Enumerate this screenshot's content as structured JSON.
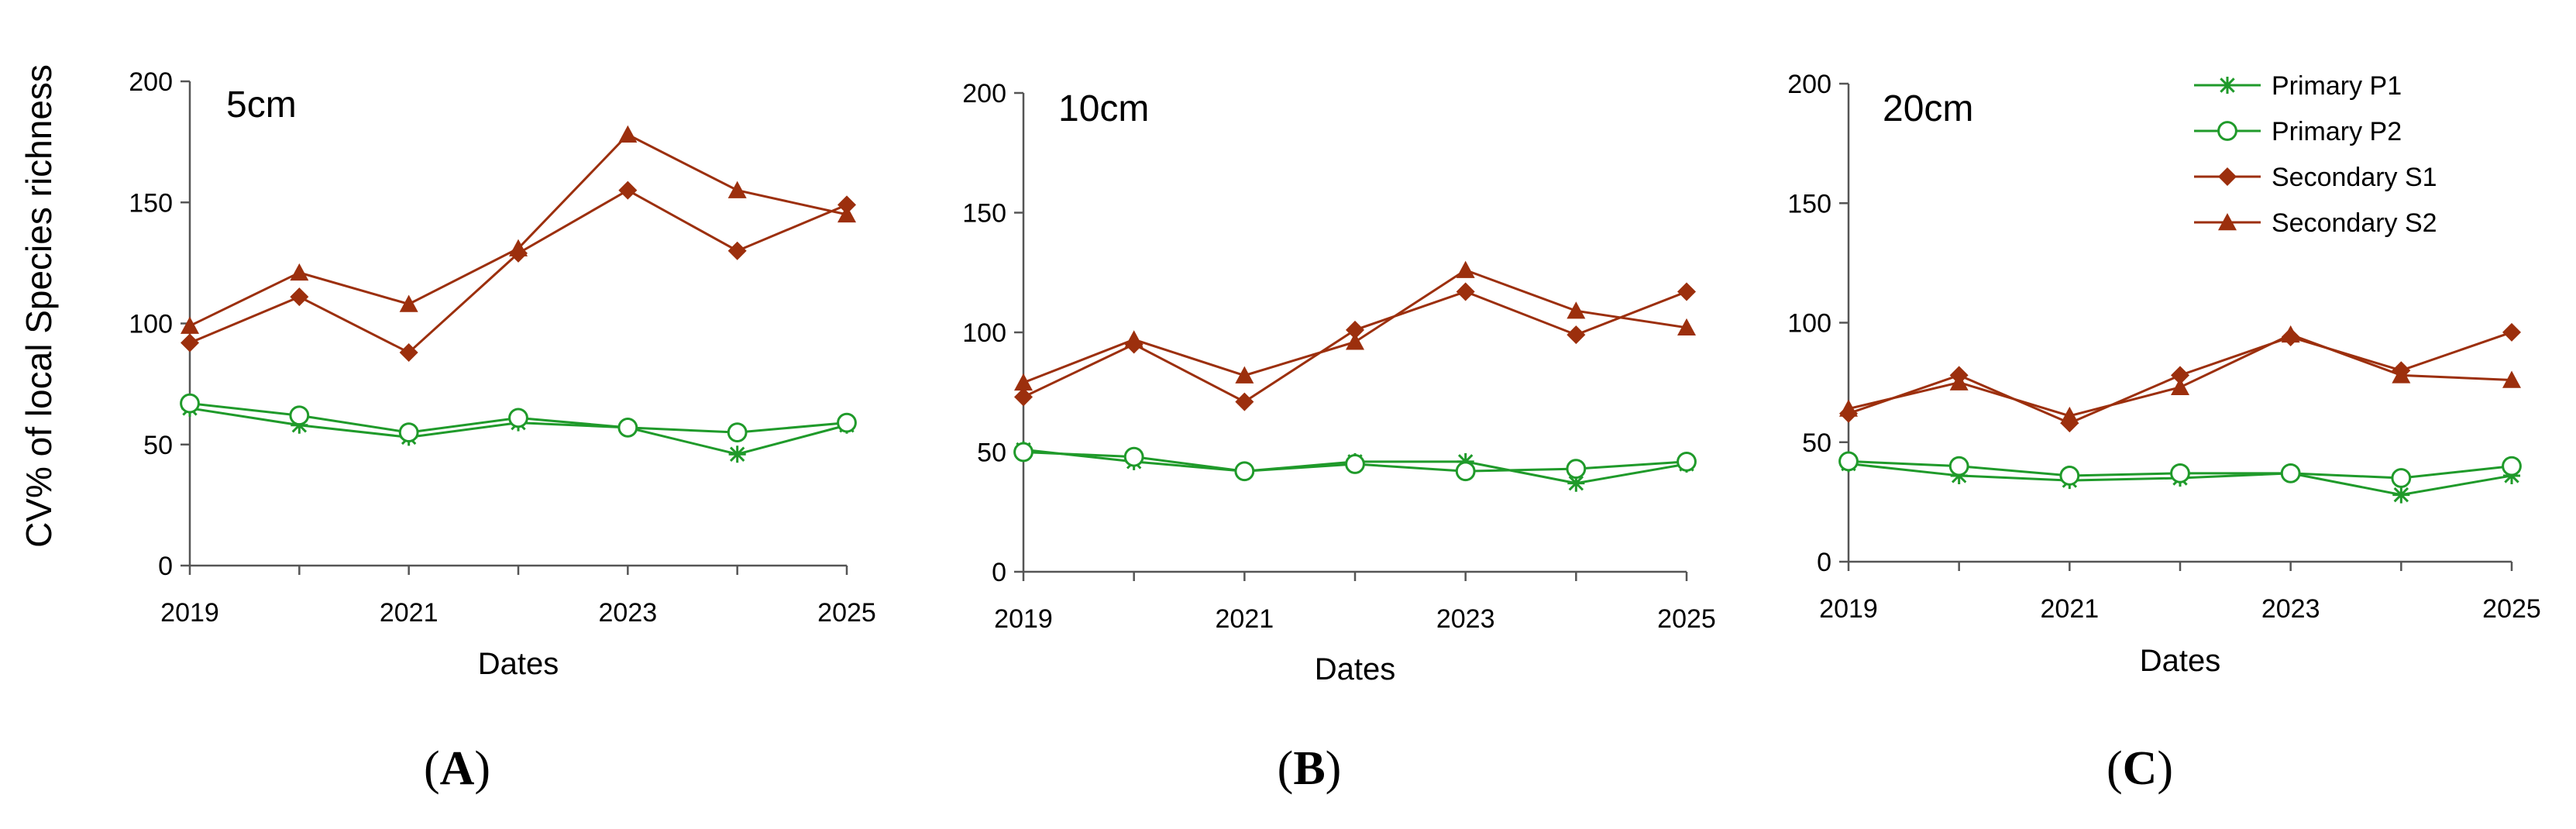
{
  "figure": {
    "ylabel": "CV% of local Species richness",
    "colors": {
      "primary": "#1f9a2a",
      "secondary": "#9c2f0d"
    }
  },
  "chart_data": [
    {
      "type": "line",
      "title": "5cm",
      "panel_label": {
        "open": "(",
        "letter": "A",
        "close": ")"
      },
      "xlabel": "Dates",
      "ylabel": "CV% of local Species richness",
      "x": [
        2019,
        2020,
        2021,
        2022,
        2023,
        2024,
        2025
      ],
      "xticks": [
        "2019",
        "2021",
        "2023",
        "2025"
      ],
      "ylim": [
        0,
        200
      ],
      "yticks": [
        0,
        50,
        100,
        150,
        200
      ],
      "series": [
        {
          "name": "Primary P1",
          "marker": "asterisk",
          "color": "#1f9a2a",
          "values": [
            65,
            58,
            53,
            59,
            57,
            46,
            58
          ]
        },
        {
          "name": "Primary P2",
          "marker": "circle",
          "color": "#1f9a2a",
          "values": [
            67,
            62,
            55,
            61,
            57,
            55,
            59
          ]
        },
        {
          "name": "Secondary S1",
          "marker": "diamond",
          "color": "#9c2f0d",
          "values": [
            92,
            111,
            88,
            129,
            155,
            130,
            149
          ]
        },
        {
          "name": "Secondary S2",
          "marker": "triangle",
          "color": "#9c2f0d",
          "values": [
            99,
            121,
            108,
            131,
            178,
            155,
            145
          ]
        }
      ]
    },
    {
      "type": "line",
      "title": "10cm",
      "panel_label": {
        "open": "(",
        "letter": "B",
        "close": ")"
      },
      "xlabel": "Dates",
      "ylabel": "",
      "x": [
        2019,
        2020,
        2021,
        2022,
        2023,
        2024,
        2025
      ],
      "xticks": [
        "2019",
        "2021",
        "2023",
        "2025"
      ],
      "ylim": [
        0,
        200
      ],
      "yticks": [
        0,
        50,
        100,
        150,
        200
      ],
      "series": [
        {
          "name": "Primary P1",
          "marker": "asterisk",
          "color": "#1f9a2a",
          "values": [
            51,
            46,
            42,
            46,
            46,
            37,
            45
          ]
        },
        {
          "name": "Primary P2",
          "marker": "circle",
          "color": "#1f9a2a",
          "values": [
            50,
            48,
            42,
            45,
            42,
            43,
            46
          ]
        },
        {
          "name": "Secondary S1",
          "marker": "diamond",
          "color": "#9c2f0d",
          "values": [
            73,
            95,
            71,
            101,
            117,
            99,
            117
          ]
        },
        {
          "name": "Secondary S2",
          "marker": "triangle",
          "color": "#9c2f0d",
          "values": [
            79,
            97,
            82,
            96,
            126,
            109,
            102
          ]
        }
      ]
    },
    {
      "type": "line",
      "title": "20cm",
      "panel_label": {
        "open": "(",
        "letter": "C",
        "close": ")"
      },
      "xlabel": "Dates",
      "ylabel": "",
      "x": [
        2019,
        2020,
        2021,
        2022,
        2023,
        2024,
        2025
      ],
      "xticks": [
        "2019",
        "2021",
        "2023",
        "2025"
      ],
      "ylim": [
        0,
        200
      ],
      "yticks": [
        0,
        50,
        100,
        150,
        200
      ],
      "legend": {
        "position": "top-right"
      },
      "series": [
        {
          "name": "Primary P1",
          "marker": "asterisk",
          "color": "#1f9a2a",
          "values": [
            41,
            36,
            34,
            35,
            37,
            28,
            36
          ]
        },
        {
          "name": "Primary P2",
          "marker": "circle",
          "color": "#1f9a2a",
          "values": [
            42,
            40,
            36,
            37,
            37,
            35,
            40
          ]
        },
        {
          "name": "Secondary S1",
          "marker": "diamond",
          "color": "#9c2f0d",
          "values": [
            62,
            78,
            58,
            78,
            94,
            80,
            96
          ]
        },
        {
          "name": "Secondary S2",
          "marker": "triangle",
          "color": "#9c2f0d",
          "values": [
            64,
            75,
            61,
            73,
            95,
            78,
            76
          ]
        }
      ]
    }
  ]
}
